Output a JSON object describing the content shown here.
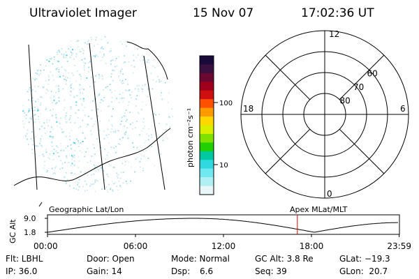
{
  "header": {
    "instrument": "Ultraviolet Imager",
    "date": "15 Nov 07",
    "time": "17:02:36 UT"
  },
  "colorbar": {
    "unit_label": "photon cm⁻²s⁻¹",
    "ticks": [
      {
        "label": "100",
        "value": 100
      },
      {
        "label": "10",
        "value": 10
      }
    ],
    "colors": [
      "#1a0a3a",
      "#3a1040",
      "#6a0830",
      "#a0001c",
      "#d01010",
      "#ff5000",
      "#ff9a00",
      "#ffd700",
      "#d8f000",
      "#80e000",
      "#20d000",
      "#00c8a0",
      "#30d8e0",
      "#70e8f0",
      "#b0f0f4",
      "#e8f6f8"
    ],
    "scale": "log"
  },
  "polar_plot": {
    "clock_labels": [
      {
        "label": "12",
        "hour": 12
      },
      {
        "label": "18",
        "hour": 18
      },
      {
        "label": "6",
        "hour": 6
      },
      {
        "label": "0",
        "hour": 0
      }
    ],
    "latitude_labels": [
      {
        "label": "60",
        "lat": 60
      },
      {
        "label": "70",
        "lat": 70
      },
      {
        "label": "80",
        "lat": 80
      }
    ],
    "rings_lat": [
      50,
      60,
      70,
      80
    ]
  },
  "timeline": {
    "left_title": "Geographic Lat/Lon",
    "right_title": "Apex MLat/MLT",
    "y_axis_label": "GC Alt",
    "y_ticks": [
      {
        "label": "9.0",
        "value": 9.0
      },
      {
        "label": "1.8",
        "value": 1.8
      }
    ],
    "x_ticks": [
      {
        "label": "00:00",
        "hours": 0
      },
      {
        "label": "06:00",
        "hours": 6
      },
      {
        "label": "12:00",
        "hours": 12
      },
      {
        "label": "18:00",
        "hours": 18
      },
      {
        "label": "23:59",
        "hours": 23.98
      }
    ],
    "current_time_hours": 17.04,
    "marker_color": "#e00000"
  },
  "status": {
    "filter": "Flt: LBHL",
    "door": "Door: Open",
    "mode": "Mode: Normal",
    "gc_alt": "GC Alt: 3.8 Re",
    "glat": "GLat: −19.3",
    "ip": "IP: 36.0",
    "gain": "Gain: 14",
    "dsp_label": "Dsp:",
    "dsp_value": "6.6",
    "seq": "Seq: 39",
    "glon": "GLon:  20.7"
  }
}
